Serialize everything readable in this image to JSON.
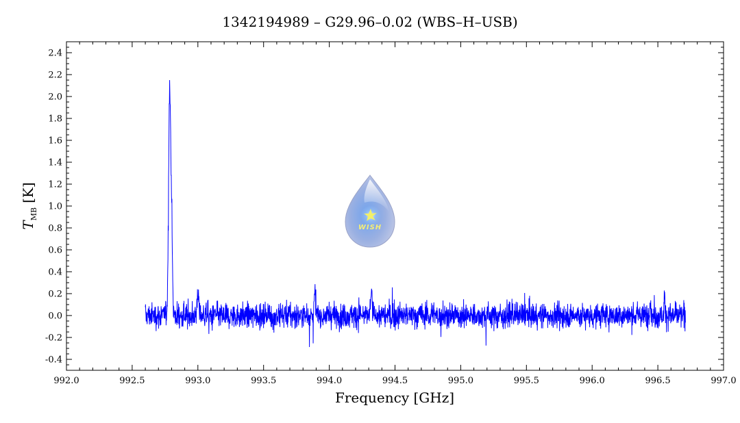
{
  "chart_data": {
    "type": "line",
    "title": "1342194989 – G29.96–0.02 (WBS–H–USB)",
    "xlabel": "Frequency [GHz]",
    "ylabel_main": "T",
    "ylabel_sub": "MB",
    "ylabel_unit": "[K]",
    "xlim": [
      992.0,
      997.0
    ],
    "ylim": [
      -0.5,
      2.5
    ],
    "x_ticks": [
      "992.0",
      "992.5",
      "993.0",
      "993.5",
      "994.0",
      "994.5",
      "995.0",
      "995.5",
      "996.0",
      "996.5",
      "997.0"
    ],
    "y_ticks": [
      "-0.4",
      "-0.2",
      "0.0",
      "0.2",
      "0.4",
      "0.6",
      "0.8",
      "1.0",
      "1.2",
      "1.4",
      "1.6",
      "1.8",
      "2.0",
      "2.2",
      "2.4"
    ],
    "grid": false,
    "line_color": "#0000ff",
    "series": [
      {
        "x_range": [
          992.6,
          996.71
        ],
        "noise_rms": 0.08,
        "peaks": [
          {
            "x": 992.785,
            "y": 2.15
          },
          {
            "x": 992.8,
            "y": 0.9
          },
          {
            "x": 993.0,
            "y": 0.35
          },
          {
            "x": 993.89,
            "y": 0.35
          },
          {
            "x": 994.32,
            "y": 0.35
          },
          {
            "x": 996.44,
            "y": 0.25
          },
          {
            "x": 996.55,
            "y": 0.3
          }
        ],
        "min_value": -0.38
      }
    ]
  },
  "logo": {
    "text": "WISH",
    "colors": {
      "drop": "#a9b8e6",
      "glow": "#8eb8f2",
      "star": "#f2f06a"
    }
  }
}
